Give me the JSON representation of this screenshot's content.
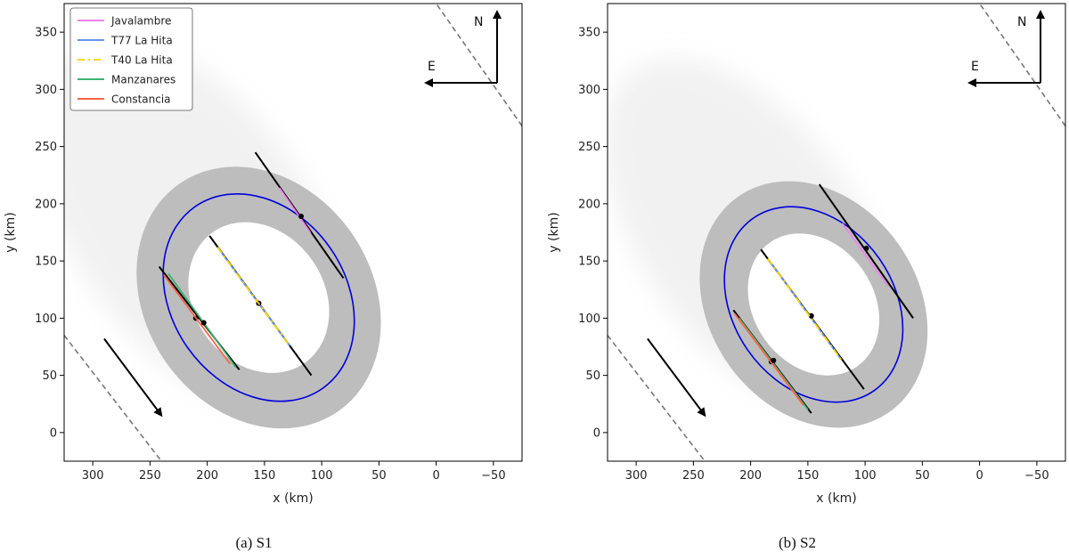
{
  "chart_data": [
    {
      "type": "scatter",
      "panel": "S1",
      "caption": "(a) S1",
      "xlabel": "x (km)",
      "ylabel": "y (km)",
      "xlim": [
        325,
        -75
      ],
      "ylim": [
        -25,
        375
      ],
      "xticks": [
        300,
        250,
        200,
        150,
        100,
        50,
        0,
        -50
      ],
      "xtick_labels": [
        "300",
        "250",
        "200",
        "150",
        "100",
        "50",
        "0",
        "−50"
      ],
      "yticks": [
        0,
        50,
        100,
        150,
        200,
        250,
        300,
        350
      ],
      "ytick_labels": [
        "0",
        "50",
        "100",
        "150",
        "200",
        "250",
        "300",
        "350"
      ],
      "legend": {
        "placement": "top-left",
        "entries": [
          {
            "name": "Javalambre",
            "color": "#ee82ee",
            "style": "solid"
          },
          {
            "name": "T77 La Hita",
            "color": "#6495ed",
            "style": "solid"
          },
          {
            "name": "T40 La Hita",
            "color": "#ffd700",
            "style": "dashdot"
          },
          {
            "name": "Manzanares",
            "color": "#3cb371",
            "style": "solid"
          },
          {
            "name": "Constancia",
            "color": "#ff6347",
            "style": "solid"
          }
        ]
      },
      "ellipse": {
        "center": [
          155,
          118
        ],
        "semi_axes": [
          76,
          97
        ],
        "color": "#0000dd"
      },
      "chords": [
        {
          "station": "Javalambre",
          "color": "#ee82ee",
          "from": [
            158,
            245
          ],
          "to": [
            81,
            135
          ],
          "colored": [
            137,
            214,
            110,
            175
          ],
          "dot": [
            118,
            189
          ]
        },
        {
          "station": "T77 La Hita",
          "color": "#6495ed",
          "from": [
            198,
            172
          ],
          "to": [
            109,
            50
          ],
          "colored": [
            191,
            162,
            128,
            76
          ],
          "dot": [
            155,
            113
          ]
        },
        {
          "station": "T40 La Hita",
          "color": "#ffd700",
          "from": [
            191,
            162
          ],
          "to": [
            128,
            76
          ],
          "colored": [
            191,
            162,
            128,
            76
          ],
          "dot": null
        },
        {
          "station": "Manzanares",
          "color": "#3cb371",
          "from": [
            242,
            145
          ],
          "to": [
            172,
            55
          ],
          "colored": [
            234,
            139,
            175,
            57
          ],
          "dot": [
            210,
            100
          ]
        },
        {
          "station": "Constancia",
          "color": "#ff6347",
          "from": [
            242,
            145
          ],
          "to": [
            172,
            55
          ],
          "colored": [
            238,
            138,
            180,
            60
          ],
          "dot": [
            203,
            96
          ]
        }
      ],
      "motion_arrow": {
        "from": [
          290,
          82
        ],
        "to": [
          240,
          15
        ]
      },
      "limb_lines": [
        {
          "from": [
            325,
            85
          ],
          "to": [
            240,
            -25
          ]
        },
        {
          "from": [
            -75,
            268
          ],
          "to": [
            0,
            375
          ]
        }
      ],
      "compass": {
        "north": "N",
        "east": "E"
      }
    },
    {
      "type": "scatter",
      "panel": "S2",
      "caption": "(b) S2",
      "xlabel": "x (km)",
      "ylabel": "y (km)",
      "xlim": [
        325,
        -75
      ],
      "ylim": [
        -25,
        375
      ],
      "xticks": [
        300,
        250,
        200,
        150,
        100,
        50,
        0,
        -50
      ],
      "xtick_labels": [
        "300",
        "250",
        "200",
        "150",
        "100",
        "50",
        "0",
        "−50"
      ],
      "yticks": [
        0,
        50,
        100,
        150,
        200,
        250,
        300,
        350
      ],
      "ytick_labels": [
        "0",
        "50",
        "100",
        "150",
        "200",
        "250",
        "300",
        "350"
      ],
      "ellipse": {
        "center": [
          145,
          112
        ],
        "semi_axes": [
          70,
          92
        ],
        "color": "#0000dd"
      },
      "chords": [
        {
          "station": "Javalambre",
          "color": "#ee82ee",
          "from": [
            140,
            217
          ],
          "to": [
            58,
            100
          ],
          "colored": [
            120,
            183,
            80,
            128
          ],
          "dot": [
            99,
            161
          ]
        },
        {
          "station": "T77 La Hita",
          "color": "#6495ed",
          "from": [
            191,
            160
          ],
          "to": [
            101,
            38
          ],
          "colored": [
            185,
            152,
            121,
            64
          ],
          "dot": [
            147,
            102
          ]
        },
        {
          "station": "T40 La Hita",
          "color": "#ffd700",
          "from": [
            185,
            152
          ],
          "to": [
            121,
            64
          ],
          "colored": [
            185,
            152,
            121,
            64
          ],
          "dot": null
        },
        {
          "station": "Manzanares",
          "color": "#3cb371",
          "from": [
            215,
            107
          ],
          "to": [
            147,
            17
          ],
          "colored": [
            210,
            100,
            150,
            20
          ],
          "dot": [
            182,
            62
          ]
        },
        {
          "station": "Constancia",
          "color": "#ff6347",
          "from": [
            215,
            107
          ],
          "to": [
            147,
            17
          ],
          "colored": [
            214,
            104,
            154,
            24
          ],
          "dot": [
            180,
            63
          ]
        }
      ],
      "motion_arrow": {
        "from": [
          290,
          82
        ],
        "to": [
          240,
          15
        ]
      },
      "limb_lines": [
        {
          "from": [
            325,
            85
          ],
          "to": [
            240,
            -25
          ]
        },
        {
          "from": [
            -75,
            268
          ],
          "to": [
            0,
            375
          ]
        }
      ],
      "compass": {
        "north": "N",
        "east": "E"
      }
    }
  ]
}
